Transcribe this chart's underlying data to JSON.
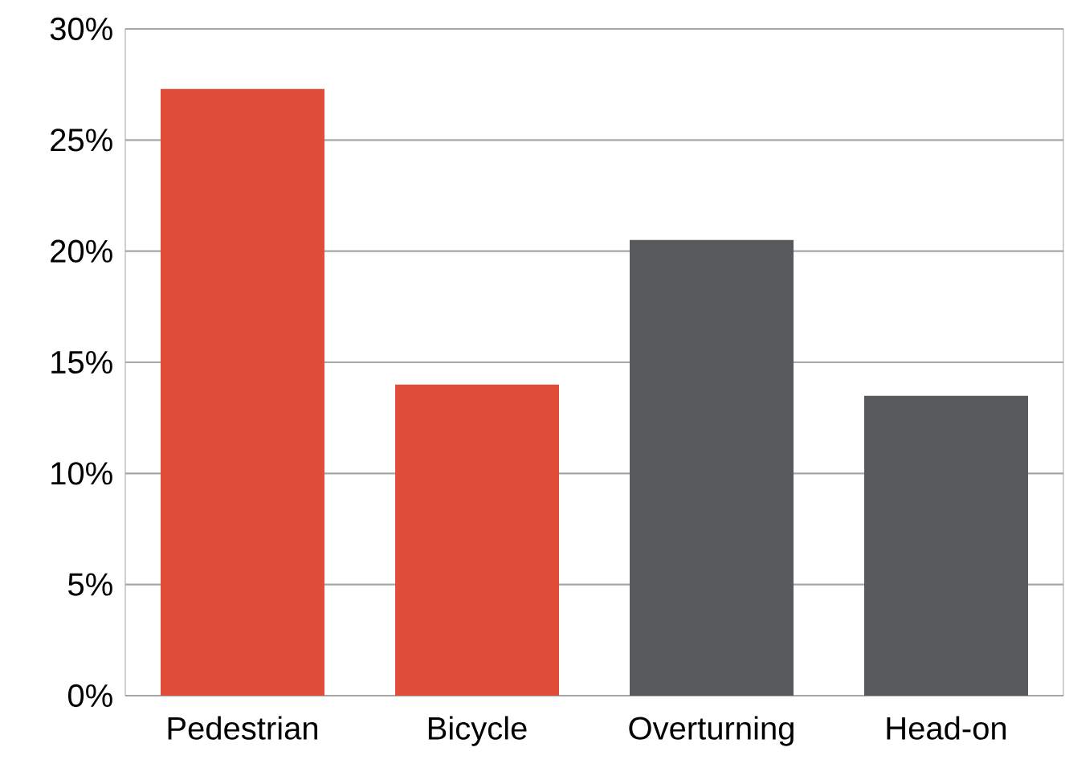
{
  "chart_data": {
    "type": "bar",
    "categories": [
      "Pedestrian",
      "Bicycle",
      "Overturning",
      "Head-on"
    ],
    "values": [
      27.3,
      14.0,
      20.5,
      13.5
    ],
    "colors": [
      "#e04e39",
      "#e04e39",
      "#58595b",
      "#58595b"
    ],
    "ylim": [
      0,
      30
    ],
    "yticks": [
      {
        "value": 0,
        "label": "0%"
      },
      {
        "value": 5,
        "label": "5%"
      },
      {
        "value": 10,
        "label": "10%"
      },
      {
        "value": 15,
        "label": "15%"
      },
      {
        "value": 20,
        "label": "20%"
      },
      {
        "value": 25,
        "label": "25%"
      },
      {
        "value": 30,
        "label": "30%"
      }
    ],
    "grid": "y"
  }
}
